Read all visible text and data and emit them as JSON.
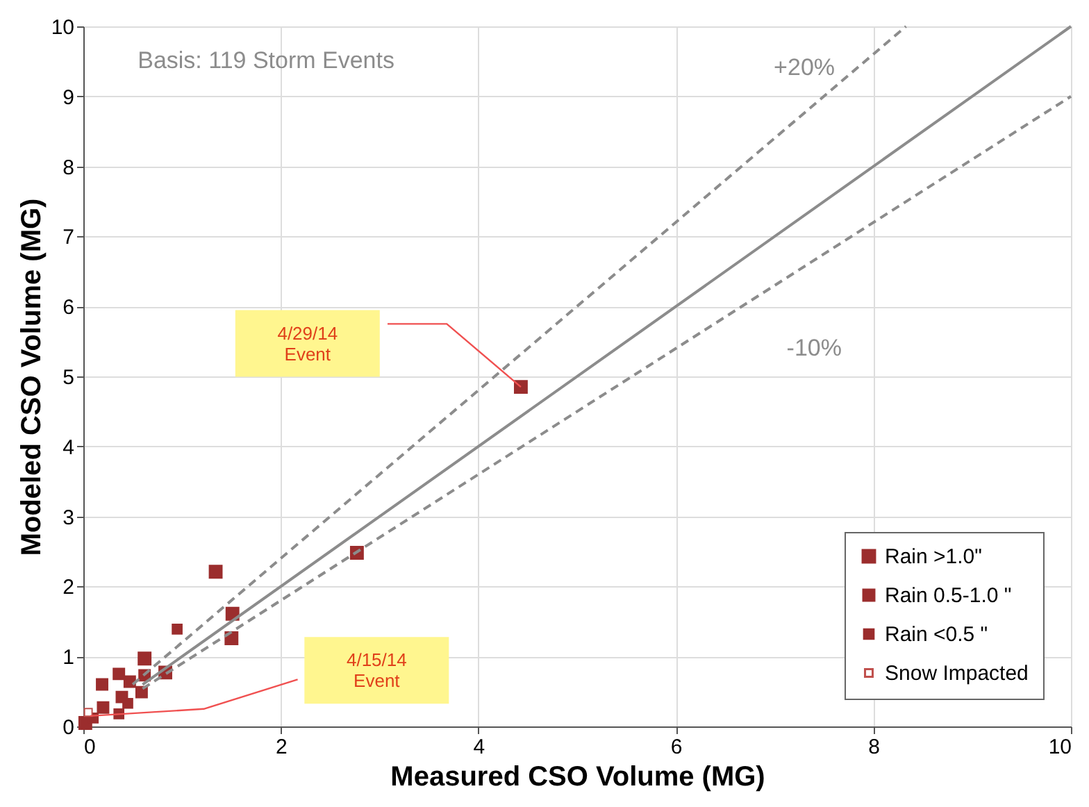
{
  "chart_data": {
    "type": "scatter",
    "xlabel": "Measured CSO Volume  (MG)",
    "ylabel": "Modeled CSO Volume (MG)",
    "xlim": [
      0,
      10
    ],
    "ylim": [
      0,
      10
    ],
    "xticks": [
      0,
      2,
      4,
      6,
      8,
      10
    ],
    "yticks": [
      0,
      1,
      2,
      3,
      4,
      5,
      6,
      7,
      8,
      9,
      10
    ],
    "grid": true,
    "legend": "bottom right",
    "marker": "square",
    "series": [
      {
        "name": "Rain >1.0\"",
        "color": "#9b2d2d",
        "x": [
          4.43,
          2.77,
          1.34,
          1.51,
          1.5,
          0.62,
          0.83,
          0.02
        ],
        "values": [
          4.85,
          2.48,
          2.21,
          1.61,
          1.26,
          0.97,
          0.77,
          0.05
        ]
      },
      {
        "name": "Rain 0.5-1.0 \"",
        "color": "#9b2d2d",
        "x": [
          0.2,
          0.19,
          0.36,
          0.59,
          0.62,
          0.39,
          0.47
        ],
        "values": [
          0.27,
          0.6,
          0.75,
          0.49,
          0.73,
          0.42,
          0.64
        ]
      },
      {
        "name": "Rain <0.5 \"",
        "color": "#9b2d2d",
        "x": [
          0.95,
          0.36,
          0.45,
          0.1
        ],
        "values": [
          1.39,
          0.18,
          0.33,
          0.12
        ]
      },
      {
        "name": "Snow Impacted",
        "color": "#c0504d",
        "x": [
          0.05
        ],
        "values": [
          0.2
        ]
      },
      {
        "type": "line",
        "color": "#8c8c8c",
        "line_style": "solid",
        "marker": "none",
        "x": [
          0.6,
          10
        ],
        "values": [
          0.6,
          10
        ]
      },
      {
        "type": "line",
        "color": "#8c8c8c",
        "line_style": "dashed",
        "marker": "none",
        "x": [
          0.5,
          8.33
        ],
        "values": [
          0.6,
          10
        ]
      },
      {
        "type": "line",
        "color": "#8c8c8c",
        "line_style": "dashed",
        "marker": "none",
        "x": [
          0.6,
          10
        ],
        "values": [
          0.54,
          9
        ]
      }
    ],
    "annotations": [
      {
        "text": "Basis: 119 Storm Events"
      },
      {
        "text": "+20%"
      },
      {
        "text": "-10%"
      },
      "4/29/14 Event",
      "4/15/14 Event"
    ]
  }
}
